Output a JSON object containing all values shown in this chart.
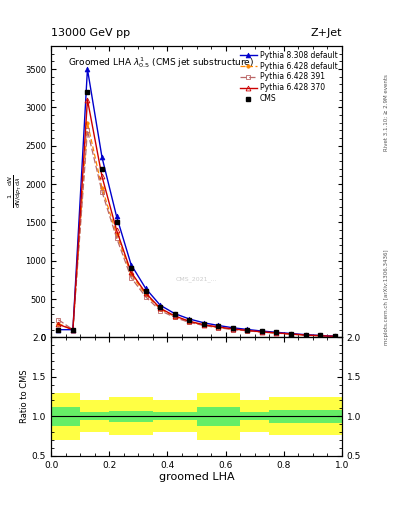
{
  "title_top": "13000 GeV pp",
  "title_right": "Z+Jet",
  "plot_title": "Groomed LHA $\\lambda^{1}_{0.5}$ (CMS jet substructure)",
  "xlabel": "groomed LHA",
  "ylabel_left": "1 / mathrm{d}N / mathrm{d}p_{T} mathrm{d}N / mathrm{d}lambda",
  "right_label": "mcplots.cern.ch [arXiv:1306.3436]",
  "right_label2": "Rivet 3.1.10; ≥ 2.9M events",
  "cms_x": [
    0.025,
    0.075,
    0.125,
    0.175,
    0.225,
    0.275,
    0.325,
    0.375,
    0.425,
    0.475,
    0.525,
    0.575,
    0.625,
    0.675,
    0.725,
    0.775,
    0.825,
    0.875,
    0.925,
    0.975
  ],
  "cms_y": [
    100,
    100,
    3200,
    2200,
    1500,
    900,
    600,
    400,
    300,
    230,
    180,
    150,
    120,
    100,
    80,
    65,
    50,
    35,
    25,
    15
  ],
  "py6_370_y": [
    170,
    100,
    3100,
    2100,
    1400,
    850,
    580,
    380,
    280,
    210,
    165,
    135,
    110,
    90,
    72,
    58,
    44,
    30,
    22,
    13
  ],
  "py6_391_y": [
    230,
    100,
    2700,
    1900,
    1300,
    780,
    530,
    350,
    260,
    195,
    155,
    125,
    102,
    85,
    68,
    55,
    41,
    28,
    20,
    12
  ],
  "py6_def_y": [
    180,
    100,
    2800,
    1950,
    1350,
    820,
    560,
    370,
    270,
    205,
    160,
    130,
    105,
    88,
    70,
    56,
    42,
    29,
    21,
    12
  ],
  "py8_def_y": [
    100,
    100,
    3500,
    2350,
    1580,
    950,
    640,
    420,
    310,
    240,
    190,
    155,
    125,
    103,
    82,
    66,
    50,
    35,
    25,
    15
  ],
  "ratio_x_bins": [
    0.0,
    0.1,
    0.2,
    0.35,
    0.5,
    0.65,
    0.75,
    1.0
  ],
  "green_lo": [
    0.88,
    0.95,
    0.93,
    0.95,
    0.88,
    0.95,
    0.92
  ],
  "green_hi": [
    1.12,
    1.05,
    1.07,
    1.05,
    1.12,
    1.05,
    1.08
  ],
  "yellow_lo": [
    0.7,
    0.8,
    0.76,
    0.8,
    0.7,
    0.8,
    0.76
  ],
  "yellow_hi": [
    1.3,
    1.2,
    1.24,
    1.2,
    1.3,
    1.2,
    1.24
  ],
  "color_cms": "#000000",
  "color_py6_370": "#cc0000",
  "color_py6_391": "#bb6666",
  "color_py6_def": "#ff8800",
  "color_py8_def": "#0000cc",
  "bg_color": "#ffffff",
  "ylim_main": [
    0,
    3800
  ],
  "ylim_ratio": [
    0.5,
    2.0
  ],
  "yticks_main": [
    0,
    500,
    1000,
    1500,
    2000,
    2500,
    3000,
    3500
  ],
  "yticks_ratio": [
    0.5,
    1.0,
    1.5,
    2.0
  ]
}
